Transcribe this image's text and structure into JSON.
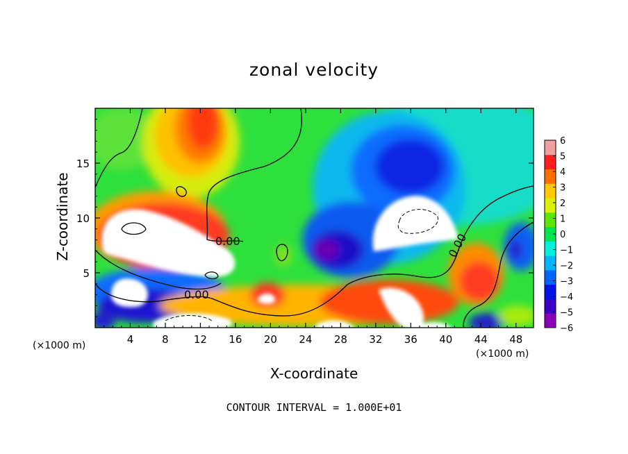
{
  "chart_data": {
    "type": "heatmap",
    "title": "zonal velocity",
    "xlabel": "X-coordinate",
    "ylabel": "Z-coordinate",
    "x_unit": "(×1000 m)",
    "xlim": [
      0,
      50
    ],
    "ylim": [
      0,
      20
    ],
    "x_ticks": [
      "4",
      "8",
      "12",
      "16",
      "20",
      "24",
      "28",
      "32",
      "36",
      "40",
      "44",
      "48"
    ],
    "x_tick_values": [
      4,
      8,
      12,
      16,
      20,
      24,
      28,
      32,
      36,
      40,
      44,
      48
    ],
    "y_ticks": [
      "5",
      "10",
      "15"
    ],
    "y_tick_values": [
      5,
      10,
      15
    ],
    "colorbar": {
      "min": -6,
      "max": 6,
      "labels": [
        "6",
        "5",
        "4",
        "3",
        "2",
        "1",
        "0",
        "−1",
        "−2",
        "−3",
        "−4",
        "−5",
        "−6"
      ],
      "colors": [
        "#8a00b8",
        "#3b00c8",
        "#0014e6",
        "#0064ff",
        "#00b4ff",
        "#00f0e0",
        "#00e650",
        "#5ae600",
        "#dcf000",
        "#ffc800",
        "#ff6e00",
        "#ff1e1e",
        "#f0a0a0"
      ]
    },
    "contour_labels": [
      "0.00",
      "0.00",
      "0.00"
    ],
    "footer": "CONTOUR INTERVAL = 1.000E+01"
  }
}
